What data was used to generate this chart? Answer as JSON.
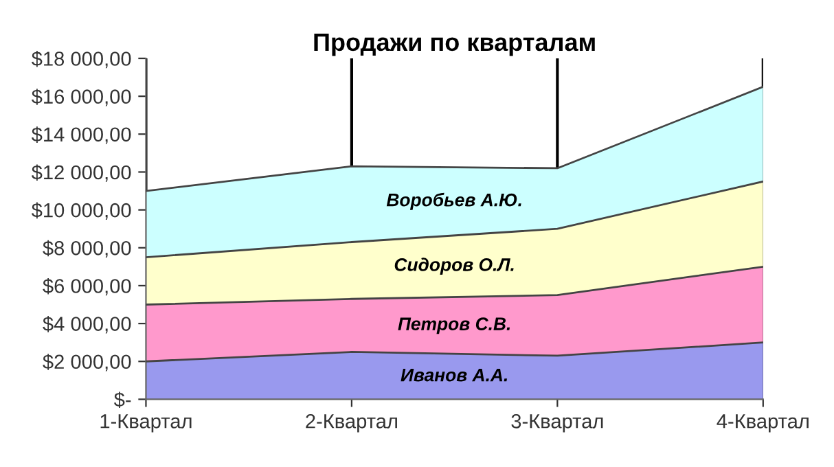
{
  "chart_data": {
    "type": "area",
    "title": "Продажи по кварталам",
    "stacked": true,
    "grid": "x",
    "legend": false,
    "categories": [
      "1-Квартал",
      "2-Квартал",
      "3-Квартал",
      "4-Квартал"
    ],
    "series": [
      {
        "name": "Иванов А.А.",
        "color": "#9999ee",
        "values": [
          2000,
          2500,
          2300,
          3000
        ]
      },
      {
        "name": "Петров С.В.",
        "color": "#ff99cc",
        "values": [
          3000,
          2800,
          3200,
          4000
        ]
      },
      {
        "name": "Сидоров О.Л.",
        "color": "#ffffcc",
        "values": [
          2500,
          3000,
          3500,
          4500
        ]
      },
      {
        "name": "Воробьев А.Ю.",
        "color": "#ccffff",
        "values": [
          3500,
          4000,
          3200,
          5000
        ]
      }
    ],
    "ylim": [
      0,
      18000
    ],
    "yticks": [
      {
        "value": 0,
        "label": "$-"
      },
      {
        "value": 2000,
        "label": "$2 000,00"
      },
      {
        "value": 4000,
        "label": "$4 000,00"
      },
      {
        "value": 6000,
        "label": "$6 000,00"
      },
      {
        "value": 8000,
        "label": "$8 000,00"
      },
      {
        "value": 10000,
        "label": "$10 000,00"
      },
      {
        "value": 12000,
        "label": "$12 000,00"
      },
      {
        "value": 14000,
        "label": "$14 000,00"
      },
      {
        "value": 16000,
        "label": "$16 000,00"
      },
      {
        "value": 18000,
        "label": "$18 000,00"
      }
    ]
  }
}
